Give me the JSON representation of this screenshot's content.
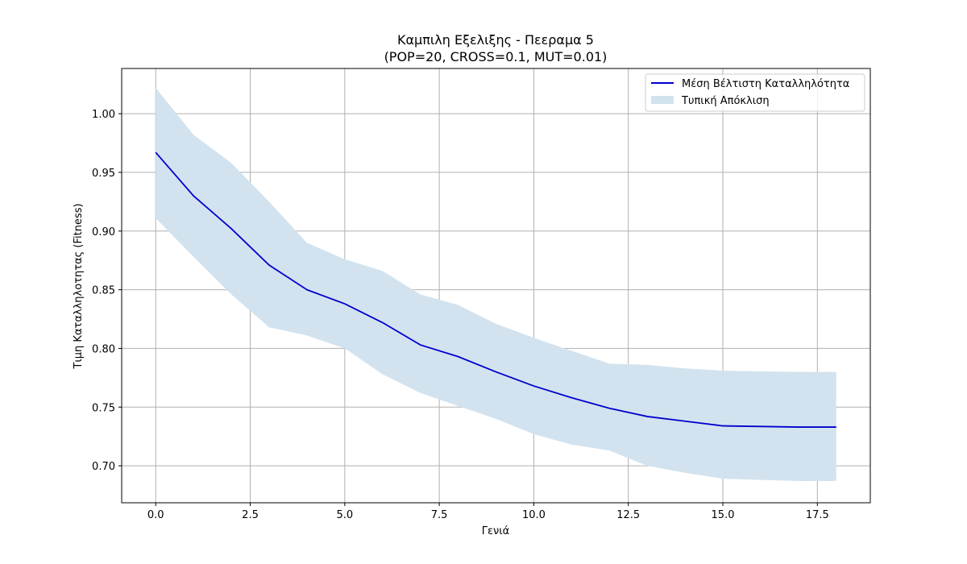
{
  "chart_data": {
    "type": "line",
    "title": "Καμπιλη Εξελιξης - Πεεραμα 5",
    "subtitle": "(POP=20, CROSS=0.1, MUT=0.01)",
    "xlabel": "Γενιά",
    "ylabel": "Τιμη Καταλληλοτητας (Fitness)",
    "xlim": [
      -0.9,
      18.9
    ],
    "ylim": [
      0.6685,
      1.0385
    ],
    "xticks": [
      0,
      2.5,
      5,
      7.5,
      10,
      12.5,
      15,
      17.5
    ],
    "xtick_labels": [
      "0.0",
      "2.5",
      "5.0",
      "7.5",
      "10.0",
      "12.5",
      "15.0",
      "17.5"
    ],
    "yticks": [
      0.7,
      0.75,
      0.8,
      0.85,
      0.9,
      0.95,
      1.0
    ],
    "ytick_labels": [
      "0.70",
      "0.75",
      "0.80",
      "0.85",
      "0.90",
      "0.95",
      "1.00"
    ],
    "grid": true,
    "legend_position": "top-right",
    "x": [
      0,
      1,
      2,
      3,
      4,
      5,
      6,
      7,
      8,
      9,
      10,
      11,
      12,
      13,
      14,
      15,
      16,
      17,
      18
    ],
    "series": [
      {
        "name": "Μέση Βέλτιστη Καταλληλότητα",
        "color": "#0000cd",
        "values": [
          0.967,
          0.93,
          0.902,
          0.871,
          0.85,
          0.838,
          0.822,
          0.803,
          0.793,
          0.78,
          0.768,
          0.758,
          0.749,
          0.742,
          0.738,
          0.734,
          0.7335,
          0.733,
          0.733
        ]
      }
    ],
    "band": {
      "name": "Τυπική Απόκλιση",
      "color": "#d2e3ef",
      "upper": [
        1.022,
        0.982,
        0.958,
        0.925,
        0.89,
        0.876,
        0.866,
        0.846,
        0.837,
        0.821,
        0.809,
        0.798,
        0.787,
        0.786,
        0.783,
        0.781,
        0.7805,
        0.78,
        0.78
      ],
      "lower": [
        0.911,
        0.878,
        0.846,
        0.818,
        0.811,
        0.8,
        0.778,
        0.762,
        0.751,
        0.74,
        0.727,
        0.718,
        0.713,
        0.7,
        0.694,
        0.689,
        0.688,
        0.687,
        0.687
      ]
    }
  }
}
